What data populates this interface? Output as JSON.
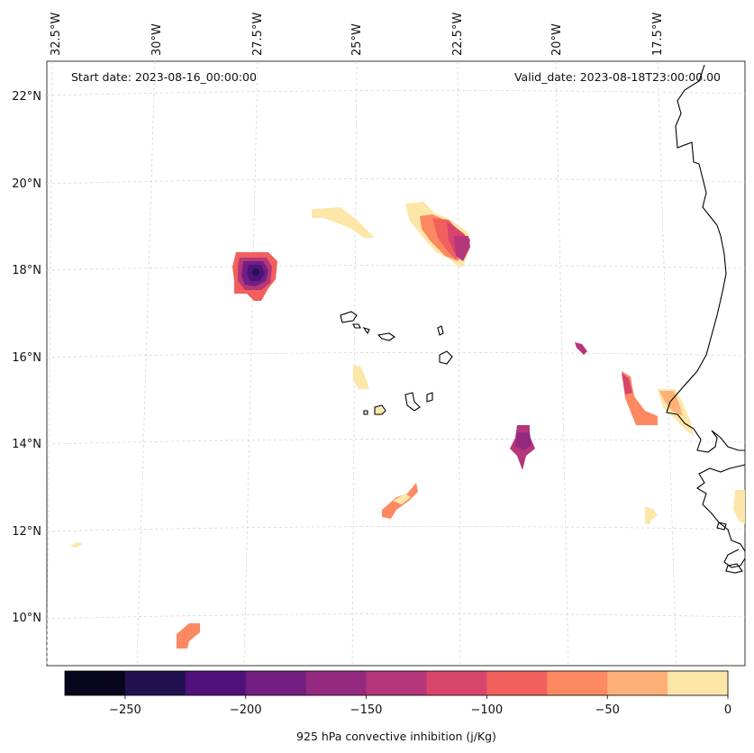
{
  "map": {
    "start_date_label": "Start date: 2023-08-16_00:00:00",
    "valid_date_label": "Valid_date: 2023-08-18T23:00:00.00",
    "lon_labels": [
      "32.5°W",
      "30°W",
      "27.5°W",
      "25°W",
      "22.5°W",
      "20°W",
      "17.5°W"
    ],
    "lat_labels": [
      "22°N",
      "20°N",
      "18°N",
      "16°N",
      "14°N",
      "12°N",
      "10°N"
    ],
    "variable": "925 hPa convective inhibition",
    "units": "j/Kg"
  },
  "colorbar": {
    "label": "925 hPa convective inhibition (j/Kg)",
    "tick_labels": [
      "−250",
      "−200",
      "−150",
      "−100",
      "−50",
      "0"
    ],
    "min": -275,
    "max": 0,
    "levels": [
      -275,
      -250,
      -225,
      -200,
      -175,
      -150,
      -125,
      -100,
      -75,
      -50,
      -25,
      0
    ],
    "colors": [
      "#07061d",
      "#221150",
      "#4f127b",
      "#721f81",
      "#932a80",
      "#b5367a",
      "#d8456c",
      "#f1605d",
      "#fc8961",
      "#feb078",
      "#fde7a8"
    ]
  }
}
